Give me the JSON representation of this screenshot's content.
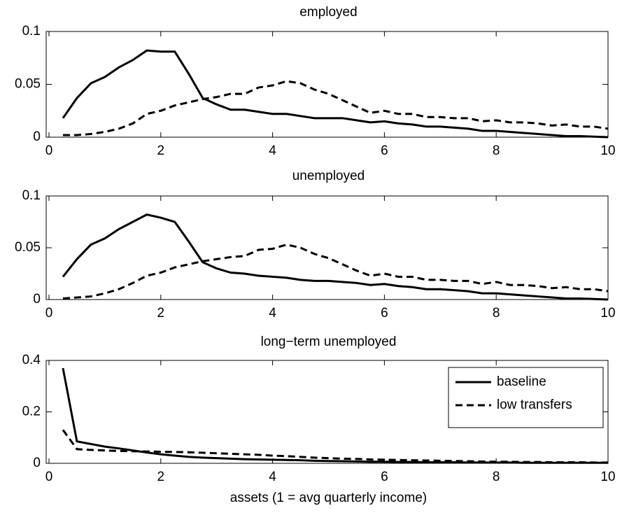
{
  "chart_data": [
    {
      "type": "line",
      "title": "employed",
      "x": [
        0.25,
        0.5,
        0.75,
        1,
        1.25,
        1.5,
        1.75,
        2,
        2.25,
        2.5,
        2.75,
        3,
        3.25,
        3.5,
        3.75,
        4,
        4.25,
        4.5,
        4.75,
        5,
        5.25,
        5.5,
        5.75,
        6,
        6.25,
        6.5,
        6.75,
        7,
        7.25,
        7.5,
        7.75,
        8,
        8.25,
        8.5,
        8.75,
        9,
        9.25,
        9.5,
        9.75,
        10
      ],
      "series": [
        {
          "color": "#000000",
          "style": "solid",
          "values": [
            0.018,
            0.037,
            0.051,
            0.057,
            0.066,
            0.073,
            0.082,
            0.081,
            0.081,
            0.06,
            0.037,
            0.031,
            0.026,
            0.026,
            0.024,
            0.022,
            0.022,
            0.02,
            0.018,
            0.018,
            0.018,
            0.016,
            0.014,
            0.015,
            0.013,
            0.012,
            0.01,
            0.01,
            0.009,
            0.008,
            0.006,
            0.006,
            0.005,
            0.004,
            0.003,
            0.002,
            0.001,
            0.001,
            0.0005,
            0
          ]
        },
        {
          "color": "#000000",
          "style": "dashed",
          "values": [
            0.002,
            0.002,
            0.003,
            0.005,
            0.008,
            0.013,
            0.022,
            0.025,
            0.03,
            0.033,
            0.036,
            0.038,
            0.041,
            0.041,
            0.047,
            0.049,
            0.053,
            0.051,
            0.045,
            0.041,
            0.035,
            0.029,
            0.023,
            0.025,
            0.022,
            0.022,
            0.019,
            0.019,
            0.018,
            0.018,
            0.015,
            0.016,
            0.014,
            0.014,
            0.013,
            0.011,
            0.012,
            0.01,
            0.01,
            0.008
          ]
        }
      ],
      "xlim": [
        0,
        10
      ],
      "xticks": [
        0,
        2,
        4,
        6,
        8,
        10
      ],
      "ylim": [
        0,
        0.1
      ],
      "yticks": [
        0,
        0.05,
        0.1
      ]
    },
    {
      "type": "line",
      "title": "unemployed",
      "x": [
        0.25,
        0.5,
        0.75,
        1,
        1.25,
        1.5,
        1.75,
        2,
        2.25,
        2.5,
        2.75,
        3,
        3.25,
        3.5,
        3.75,
        4,
        4.25,
        4.5,
        4.75,
        5,
        5.25,
        5.5,
        5.75,
        6,
        6.25,
        6.5,
        6.75,
        7,
        7.25,
        7.5,
        7.75,
        8,
        8.25,
        8.5,
        8.75,
        9,
        9.25,
        9.5,
        9.75,
        10
      ],
      "series": [
        {
          "color": "#000000",
          "style": "solid",
          "values": [
            0.022,
            0.039,
            0.053,
            0.059,
            0.068,
            0.075,
            0.082,
            0.079,
            0.075,
            0.056,
            0.036,
            0.03,
            0.026,
            0.025,
            0.023,
            0.022,
            0.021,
            0.019,
            0.018,
            0.018,
            0.017,
            0.016,
            0.014,
            0.015,
            0.013,
            0.012,
            0.01,
            0.01,
            0.009,
            0.008,
            0.006,
            0.006,
            0.005,
            0.004,
            0.003,
            0.002,
            0.001,
            0.001,
            0.0005,
            0
          ]
        },
        {
          "color": "#000000",
          "style": "dashed",
          "values": [
            0.001,
            0.002,
            0.003,
            0.006,
            0.01,
            0.016,
            0.023,
            0.026,
            0.031,
            0.034,
            0.037,
            0.039,
            0.041,
            0.042,
            0.048,
            0.049,
            0.053,
            0.05,
            0.044,
            0.04,
            0.034,
            0.028,
            0.023,
            0.025,
            0.022,
            0.022,
            0.019,
            0.019,
            0.018,
            0.018,
            0.015,
            0.017,
            0.014,
            0.014,
            0.013,
            0.011,
            0.012,
            0.01,
            0.01,
            0.008
          ]
        }
      ],
      "xlim": [
        0,
        10
      ],
      "xticks": [
        0,
        2,
        4,
        6,
        8,
        10
      ],
      "ylim": [
        0,
        0.1
      ],
      "yticks": [
        0,
        0.05,
        0.1
      ]
    },
    {
      "type": "line",
      "title": "long−term unemployed",
      "x_label": "assets (1 = avg quarterly income)",
      "x": [
        0.25,
        0.5,
        0.75,
        1,
        1.25,
        1.5,
        1.75,
        2,
        2.25,
        2.5,
        2.75,
        3,
        3.25,
        3.5,
        3.75,
        4,
        4.25,
        4.5,
        4.75,
        5,
        5.25,
        5.5,
        5.75,
        6,
        6.25,
        6.5,
        6.75,
        7,
        7.25,
        7.5,
        7.75,
        8,
        8.25,
        8.5,
        8.75,
        9,
        9.25,
        9.5,
        9.75,
        10
      ],
      "series": [
        {
          "name": "baseline",
          "color": "#000000",
          "style": "solid",
          "values": [
            0.37,
            0.085,
            0.075,
            0.065,
            0.058,
            0.05,
            0.042,
            0.035,
            0.03,
            0.025,
            0.022,
            0.02,
            0.018,
            0.016,
            0.015,
            0.014,
            0.013,
            0.012,
            0.01,
            0.009,
            0.008,
            0.007,
            0.006,
            0.006,
            0.005,
            0.005,
            0.004,
            0.004,
            0.004,
            0.003,
            0.003,
            0.003,
            0.003,
            0.002,
            0.002,
            0.002,
            0.002,
            0.002,
            0.002,
            0.002
          ]
        },
        {
          "name": "low transfers",
          "color": "#000000",
          "style": "dashed",
          "values": [
            0.13,
            0.055,
            0.052,
            0.05,
            0.048,
            0.047,
            0.046,
            0.045,
            0.044,
            0.043,
            0.041,
            0.039,
            0.037,
            0.035,
            0.033,
            0.03,
            0.028,
            0.025,
            0.022,
            0.02,
            0.018,
            0.017,
            0.015,
            0.014,
            0.013,
            0.012,
            0.011,
            0.01,
            0.009,
            0.008,
            0.007,
            0.006,
            0.006,
            0.005,
            0.005,
            0.004,
            0.004,
            0.004,
            0.003,
            0.003
          ]
        }
      ],
      "xlim": [
        0,
        10
      ],
      "xticks": [
        0,
        2,
        4,
        6,
        8,
        10
      ],
      "ylim": [
        0,
        0.4
      ],
      "yticks": [
        0,
        0.2,
        0.4
      ],
      "legend": "upper right"
    }
  ]
}
